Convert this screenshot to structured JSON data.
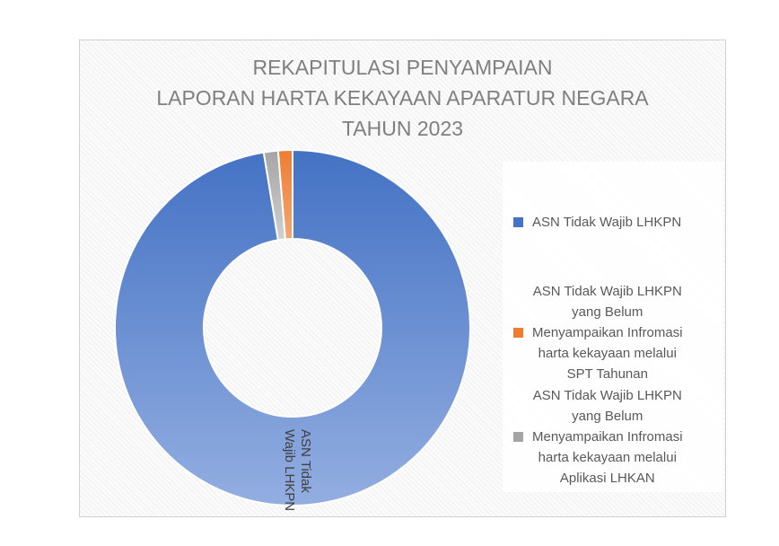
{
  "chart_data": {
    "type": "donut",
    "title": [
      "REKAPITULASI PENYAMPAIAN",
      "LAPORAN HARTA KEKAYAAN APARATUR NEGARA",
      "TAHUN 2023"
    ],
    "series": [
      {
        "values": [
          97.4,
          1.3,
          1.3
        ],
        "data_labels": [
          "ASN Tidak Wajib LHKPN",
          "",
          ""
        ]
      }
    ],
    "categories": [
      "ASN Tidak Wajib LHKPN",
      "ASN Tidak Wajib LHKPN yang Belum Menyampaikan Infromasi harta kekayaan melalui SPT Tahunan",
      "ASN Tidak Wajib LHKPN yang Belum Menyampaikan Infromasi harta kekayaan melalui Aplikasi LHKAN"
    ],
    "colors": [
      "#4472c4",
      "#ed7d31",
      "#a5a5a5"
    ],
    "legend_position": "right",
    "legend": [
      {
        "lines": [
          "ASN Tidak Wajib LHKPN"
        ],
        "color": "#4472c4"
      },
      {
        "lines": [
          "ASN Tidak Wajib LHKPN",
          "yang Belum",
          "Menyampaikan Infromasi",
          "harta kekayaan melalui",
          "SPT Tahunan"
        ],
        "color": "#ed7d31"
      },
      {
        "lines": [
          "ASN Tidak Wajib LHKPN",
          "yang Belum",
          "Menyampaikan Infromasi",
          "harta kekayaan melalui",
          "Aplikasi LHKAN"
        ],
        "color": "#a5a5a5"
      }
    ]
  }
}
